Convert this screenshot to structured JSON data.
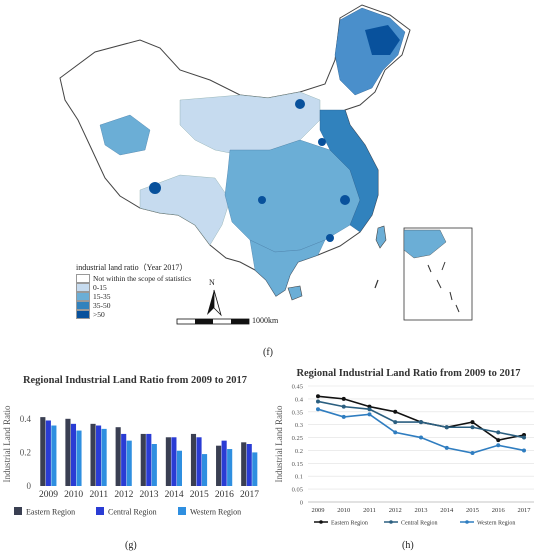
{
  "map": {
    "legend": {
      "title": "industrial land ratio（Year 2017）",
      "items": [
        {
          "label": "Not within the scope of statistics",
          "color": "#ffffff"
        },
        {
          "label": "0-15",
          "color": "#c6dbef"
        },
        {
          "label": "15-35",
          "color": "#6baed6"
        },
        {
          "label": "35-50",
          "color": "#3182bd"
        },
        {
          "label": ">50",
          "color": "#08519c"
        }
      ]
    },
    "scale_label": "1000km",
    "north_label": "N",
    "panel_label": "(f)"
  },
  "chart_data": [
    {
      "type": "bar",
      "title": "Regional Industrial Land Ratio from 2009 to 2017",
      "ylabel": "Industrial Land Ratio",
      "ylim": [
        0,
        0.5
      ],
      "yticks": [
        "0",
        "0.2",
        "0.4"
      ],
      "categories": [
        "2009",
        "2010",
        "2011",
        "2012",
        "2013",
        "2014",
        "2015",
        "2016",
        "2017"
      ],
      "legend_position": "bottom",
      "series": [
        {
          "name": "Eastern Region",
          "color": "#3a3f52",
          "values": [
            0.41,
            0.4,
            0.37,
            0.35,
            0.31,
            0.29,
            0.31,
            0.24,
            0.26
          ]
        },
        {
          "name": "Central Region",
          "color": "#2a3cd4",
          "values": [
            0.39,
            0.37,
            0.36,
            0.31,
            0.31,
            0.29,
            0.29,
            0.27,
            0.25
          ]
        },
        {
          "name": "Western Region",
          "color": "#2f8fe0",
          "values": [
            0.36,
            0.33,
            0.34,
            0.27,
            0.25,
            0.21,
            0.19,
            0.22,
            0.2
          ]
        }
      ],
      "panel_label": "(g)"
    },
    {
      "type": "line",
      "title": "Regional Industrial Land Ratio from 2009 to 2017",
      "ylabel": "Industrial Land Ratio",
      "ylim": [
        0,
        0.45
      ],
      "yticks": [
        "0",
        "0.05",
        "0.1",
        "0.15",
        "0.2",
        "0.25",
        "0.3",
        "0.35",
        "0.4",
        "0.45"
      ],
      "categories": [
        "2009",
        "2010",
        "2011",
        "2012",
        "2013",
        "2014",
        "2015",
        "2016",
        "2017"
      ],
      "grid": true,
      "legend_position": "bottom",
      "series": [
        {
          "name": "Eastern Region",
          "color": "#111111",
          "values": [
            0.41,
            0.4,
            0.37,
            0.35,
            0.31,
            0.29,
            0.31,
            0.24,
            0.26
          ]
        },
        {
          "name": "Central Region",
          "color": "#2b5f80",
          "values": [
            0.39,
            0.37,
            0.36,
            0.31,
            0.31,
            0.29,
            0.29,
            0.27,
            0.25
          ]
        },
        {
          "name": "Western Region",
          "color": "#2f7dc0",
          "values": [
            0.36,
            0.33,
            0.34,
            0.27,
            0.25,
            0.21,
            0.19,
            0.22,
            0.2
          ]
        }
      ],
      "panel_label": "(h)"
    }
  ]
}
